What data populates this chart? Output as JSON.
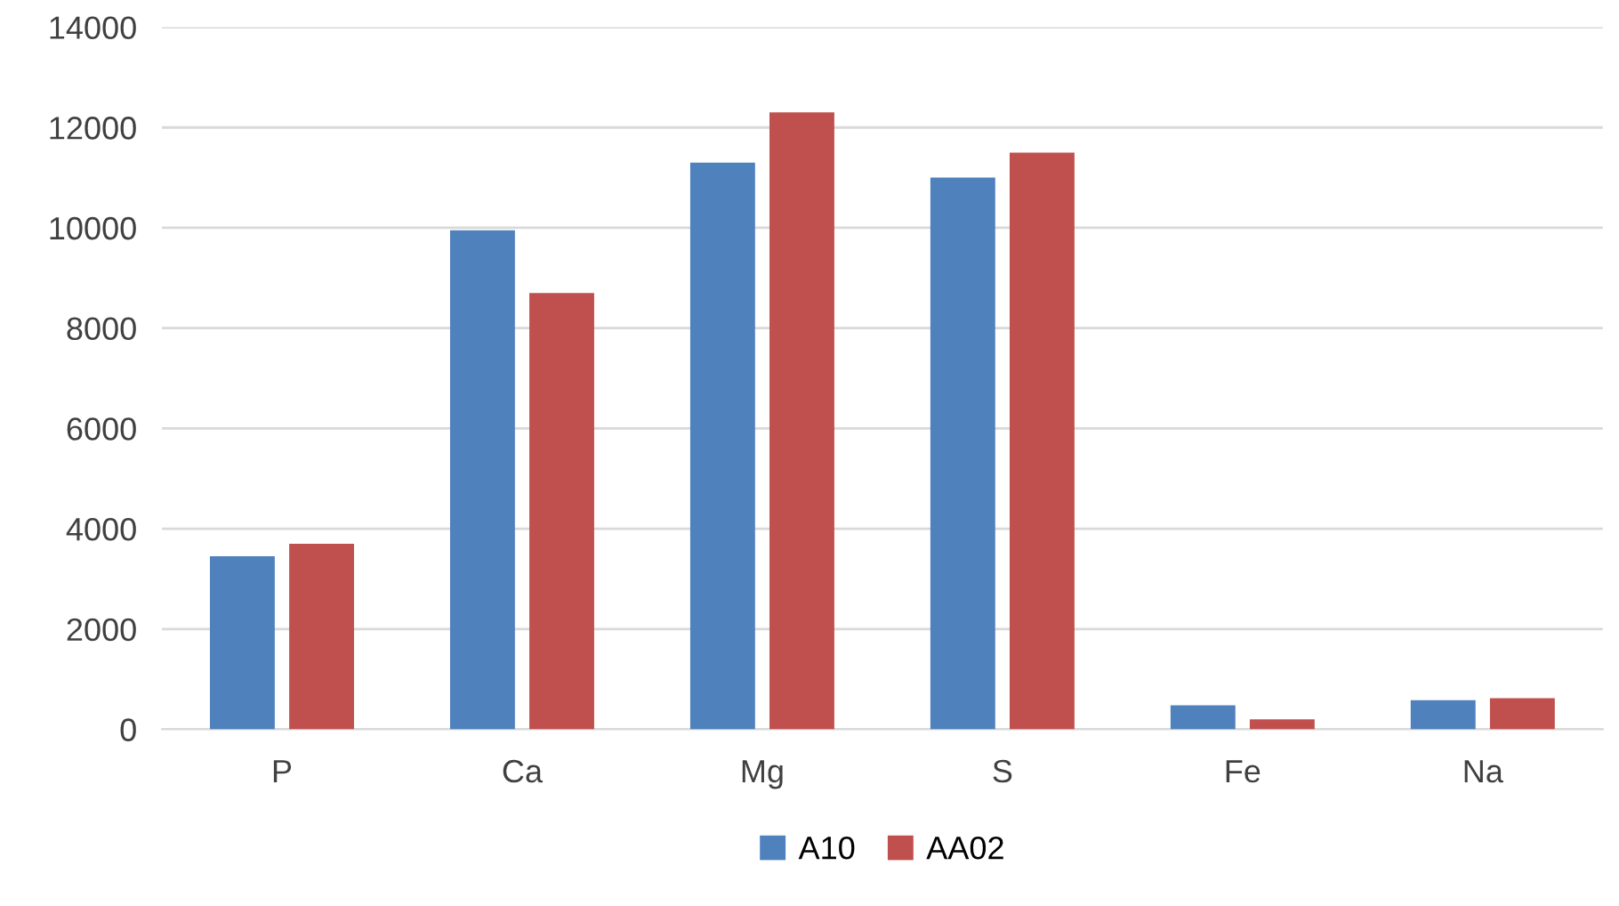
{
  "chart_data": {
    "type": "bar",
    "categories": [
      "P",
      "Ca",
      "Mg",
      "S",
      "Fe",
      "Na"
    ],
    "series": [
      {
        "name": "A10",
        "color": "#4f81bd",
        "values": [
          3450,
          9950,
          11300,
          11000,
          480,
          580
        ]
      },
      {
        "name": "AA02",
        "color": "#c0504d",
        "values": [
          3700,
          8700,
          12300,
          11500,
          200,
          620
        ]
      }
    ],
    "ylim": [
      0,
      14000
    ],
    "yticks": [
      0,
      2000,
      4000,
      6000,
      8000,
      10000,
      12000,
      14000
    ],
    "grid": "y",
    "legend": "bottom"
  }
}
